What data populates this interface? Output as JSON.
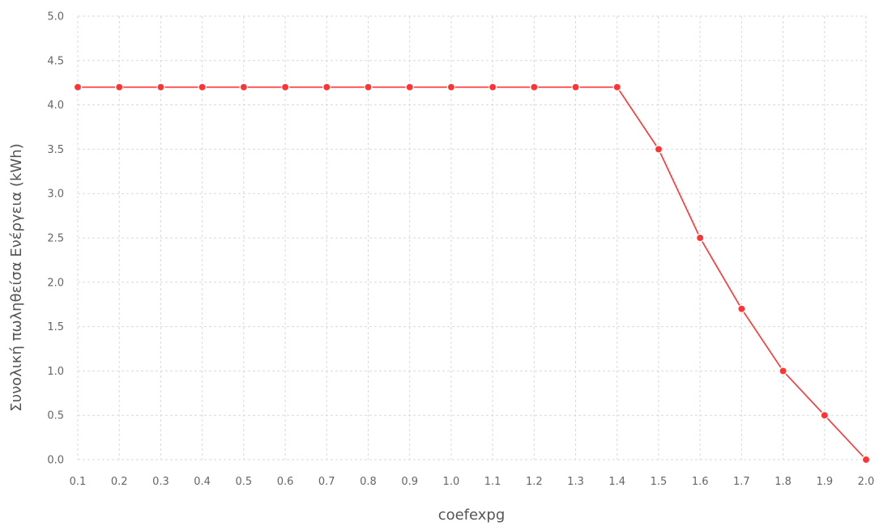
{
  "chart_data": {
    "type": "line",
    "title": "",
    "xlabel": "coefexpg",
    "ylabel": "Συνολική πωληθείσα Ενέργεια (kWh)",
    "x": [
      0.1,
      0.2,
      0.3,
      0.4,
      0.5,
      0.6,
      0.7,
      0.8,
      0.9,
      1.0,
      1.1,
      1.2,
      1.3,
      1.4,
      1.5,
      1.6,
      1.7,
      1.8,
      1.9,
      2.0
    ],
    "x_tick_labels": [
      "0.1",
      "0.2",
      "0.3",
      "0.4",
      "0.5",
      "0.6",
      "0.7",
      "0.8",
      "0.9",
      "1.0",
      "1.1",
      "1.2",
      "1.3",
      "1.4",
      "1.5",
      "1.6",
      "1.7",
      "1.8",
      "1.9",
      "2.0"
    ],
    "y_ticks": [
      0.0,
      0.5,
      1.0,
      1.5,
      2.0,
      2.5,
      3.0,
      3.5,
      4.0,
      4.5,
      5.0
    ],
    "y_tick_labels": [
      "0.0",
      "0.5",
      "1.0",
      "1.5",
      "2.0",
      "2.5",
      "3.0",
      "3.5",
      "4.0",
      "4.5",
      "5.0"
    ],
    "xlim": [
      0.1,
      2.0
    ],
    "ylim": [
      0,
      5
    ],
    "grid": true,
    "series": [
      {
        "values": [
          4.2,
          4.2,
          4.2,
          4.2,
          4.2,
          4.2,
          4.2,
          4.2,
          4.2,
          4.2,
          4.2,
          4.2,
          4.2,
          4.2,
          3.5,
          2.5,
          1.7,
          1.0,
          0.5,
          0.0
        ],
        "color": "#ff3333"
      }
    ]
  }
}
